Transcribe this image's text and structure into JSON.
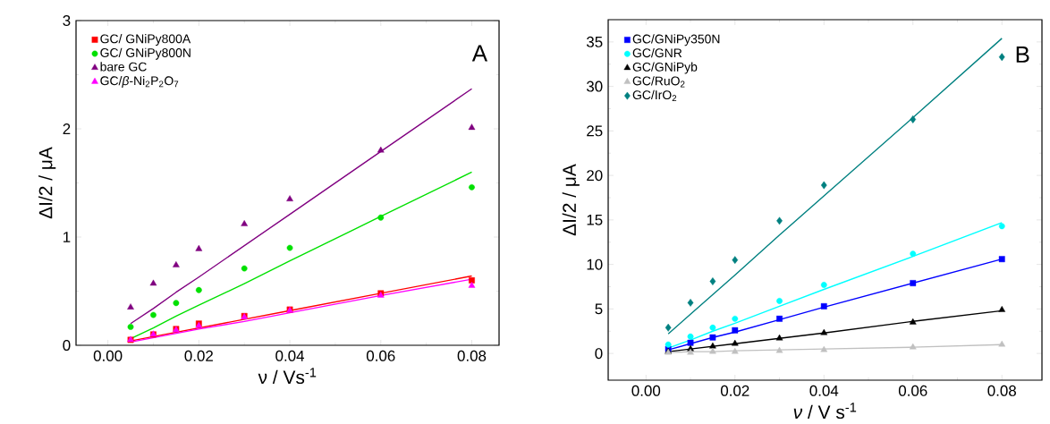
{
  "chart_data": [
    {
      "type": "scatter",
      "xlabel": "ν / Vs$^{-1}$",
      "ylabel": "ΔI/2 / μA",
      "xlim": [
        -0.007,
        0.086
      ],
      "ylim": [
        0,
        3
      ],
      "xticks": [
        {
          "value": 0,
          "label": "0.00"
        },
        {
          "value": 0.02,
          "label": "0.02"
        },
        {
          "value": 0.04,
          "label": "0.04"
        },
        {
          "value": 0.06,
          "label": "0.06"
        },
        {
          "value": 0.08,
          "label": "0.08"
        }
      ],
      "yticks": [
        0,
        1,
        2,
        3
      ],
      "legend": "top left",
      "annotations": [
        "A"
      ],
      "x": [
        0.005,
        0.01,
        0.015,
        0.02,
        0.03,
        0.04,
        0.06,
        0.08
      ],
      "series": [
        {
          "name": "GC/ GNiPy800A",
          "color": "#ff0000",
          "marker": "square",
          "values": [
            0.05,
            0.1,
            0.15,
            0.2,
            0.27,
            0.33,
            0.48,
            0.6
          ]
        },
        {
          "name": "GC/ GNiPy800N",
          "color": "#00e000",
          "marker": "circle",
          "values": [
            0.17,
            0.28,
            0.39,
            0.51,
            0.71,
            0.9,
            1.18,
            1.46
          ]
        },
        {
          "name": "bare GC",
          "color": "#800080",
          "marker": "triangle",
          "values": [
            0.35,
            0.57,
            0.74,
            0.89,
            1.12,
            1.35,
            1.8,
            2.01
          ]
        },
        {
          "name": "GC/*β*-Ni$_{2}$P$_{2}$O$_{7}$",
          "color": "#ff00ff",
          "marker": "triangle",
          "values": [
            0.05,
            0.1,
            0.14,
            0.18,
            0.26,
            0.32,
            0.46,
            0.55
          ]
        },
        {
          "type": "line",
          "color": "#ff0000",
          "values": [
            0.04,
            0.08,
            0.12,
            0.16,
            0.24,
            0.32,
            0.48,
            0.64
          ]
        },
        {
          "type": "line",
          "color": "#00e000",
          "values": [
            0.06,
            0.16,
            0.27,
            0.37,
            0.57,
            0.78,
            1.19,
            1.6
          ]
        },
        {
          "type": "line",
          "color": "#800080",
          "values": [
            0.2,
            0.34,
            0.49,
            0.63,
            0.92,
            1.21,
            1.79,
            2.37
          ]
        },
        {
          "type": "line",
          "color": "#ff00ff",
          "values": [
            0.03,
            0.07,
            0.11,
            0.15,
            0.22,
            0.3,
            0.46,
            0.61
          ]
        }
      ]
    },
    {
      "type": "scatter",
      "xlabel": "*ν* / V s$^{-1}$",
      "ylabel": "ΔI/2 / μA",
      "xlim": [
        -0.0085,
        0.089
      ],
      "ylim": [
        -3,
        37.5
      ],
      "xticks": [
        {
          "value": 0,
          "label": "0.00"
        },
        {
          "value": 0.02,
          "label": "0.02"
        },
        {
          "value": 0.04,
          "label": "0.04"
        },
        {
          "value": 0.06,
          "label": "0.06"
        },
        {
          "value": 0.08,
          "label": "0.08"
        }
      ],
      "yticks": [
        0,
        5,
        10,
        15,
        20,
        25,
        30,
        35
      ],
      "legend": "top left",
      "annotations": [
        "B"
      ],
      "x": [
        0.005,
        0.01,
        0.015,
        0.02,
        0.03,
        0.04,
        0.06,
        0.08
      ],
      "series": [
        {
          "name": "GC/GNiPy350N",
          "color": "#0000ff",
          "marker": "square",
          "values": [
            0.5,
            1.2,
            1.8,
            2.6,
            3.9,
            5.3,
            7.9,
            10.6
          ]
        },
        {
          "name": "GC/GNR",
          "color": "#00ffff",
          "marker": "circle",
          "values": [
            1.0,
            1.9,
            2.9,
            3.9,
            5.9,
            7.7,
            11.2,
            14.3
          ]
        },
        {
          "name": "GC/GNiPyb",
          "color": "#000000",
          "marker": "triangle",
          "values": [
            0.2,
            0.5,
            0.8,
            1.1,
            1.7,
            2.3,
            3.5,
            4.9
          ]
        },
        {
          "name": "GC/RuO$_{2}$",
          "color": "#c0c0c0",
          "marker": "triangle",
          "values": [
            0.1,
            0.1,
            0.2,
            0.2,
            0.3,
            0.4,
            0.7,
            1.0
          ]
        },
        {
          "name": "GC/IrO$_{2}$",
          "color": "#008080",
          "marker": "diamond",
          "values": [
            2.9,
            5.7,
            8.1,
            10.5,
            14.9,
            18.9,
            26.3,
            33.3
          ]
        },
        {
          "type": "line",
          "color": "#0000ff",
          "values": [
            0.4,
            1.1,
            1.8,
            2.4,
            3.8,
            5.2,
            7.9,
            10.6
          ]
        },
        {
          "type": "line",
          "color": "#00ffff",
          "values": [
            0.6,
            1.5,
            2.5,
            3.4,
            5.3,
            7.2,
            10.9,
            14.7
          ]
        },
        {
          "type": "line",
          "color": "#000000",
          "values": [
            0.2,
            0.5,
            0.8,
            1.1,
            1.7,
            2.3,
            3.6,
            4.8
          ]
        },
        {
          "type": "line",
          "color": "#c0c0c0",
          "values": [
            0.1,
            0.2,
            0.2,
            0.3,
            0.4,
            0.5,
            0.7,
            1.0
          ]
        },
        {
          "type": "line",
          "color": "#008080",
          "values": [
            2.2,
            4.4,
            6.6,
            8.8,
            13.3,
            17.7,
            26.5,
            35.4
          ]
        }
      ]
    }
  ]
}
